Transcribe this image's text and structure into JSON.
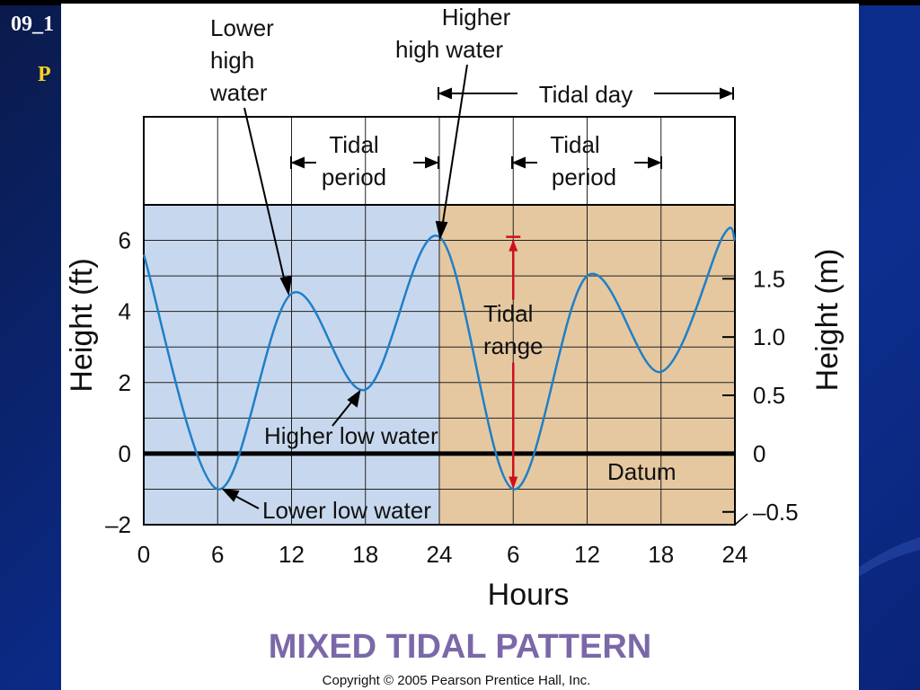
{
  "slide": {
    "code_text": "09_1",
    "letter_text": "P",
    "background_color": "#0b2a86",
    "letter_color": "#ffd21f"
  },
  "figure": {
    "title": "MIXED TIDAL PATTERN",
    "title_color": "#7b68a8",
    "copyright": "Copyright © 2005 Pearson Prentice Hall, Inc."
  },
  "annotations": {
    "lower_high_water": [
      "Lower",
      "high",
      "water"
    ],
    "higher_high_water": [
      "Higher",
      "high water"
    ],
    "tidal_day": "Tidal day",
    "tidal_period": [
      "Tidal",
      "period"
    ],
    "tidal_range": [
      "Tidal",
      "range"
    ],
    "higher_low_water": "Higher low water",
    "lower_low_water": "Lower low water",
    "datum": "Datum"
  },
  "chart_data": {
    "type": "line",
    "xlabel": "Hours",
    "ylabel": "Height (ft)",
    "ylabel_right": "Height (m)",
    "x_tick_labels": [
      "0",
      "6",
      "12",
      "18",
      "24",
      "6",
      "12",
      "18",
      "24"
    ],
    "x_elapsed_hours": [
      0,
      6,
      12,
      18,
      24,
      30,
      36,
      42,
      48
    ],
    "ylim": [
      -2,
      7
    ],
    "yticks": [
      -2,
      0,
      2,
      4,
      6
    ],
    "y_tick_labels": [
      "–2",
      "0",
      "2",
      "4",
      "6"
    ],
    "right_axis_tick_labels": [
      "–0.5",
      "0",
      "0.5",
      "1.0",
      "1.5"
    ],
    "right_axis_tick_values_ft": [
      -1.64,
      0,
      1.64,
      3.28,
      4.92
    ],
    "shading": [
      {
        "from_hour": 0,
        "to_hour": 24,
        "color": "#c7d8ee"
      },
      {
        "from_hour": 24,
        "to_hour": 48,
        "color": "#e6c8a0"
      }
    ],
    "series": [
      {
        "color": "#1f7fc8",
        "x": [
          0,
          6,
          12,
          18,
          24,
          30,
          36,
          42,
          47,
          48
        ],
        "y": [
          5.6,
          -1.0,
          4.5,
          1.8,
          6.1,
          -1.0,
          5.0,
          2.3,
          6.1,
          6.0
        ]
      }
    ],
    "datum_y": 0,
    "tidal_range": {
      "x": 30,
      "from": -1.0,
      "to": 6.1,
      "color": "#cc1020"
    }
  }
}
